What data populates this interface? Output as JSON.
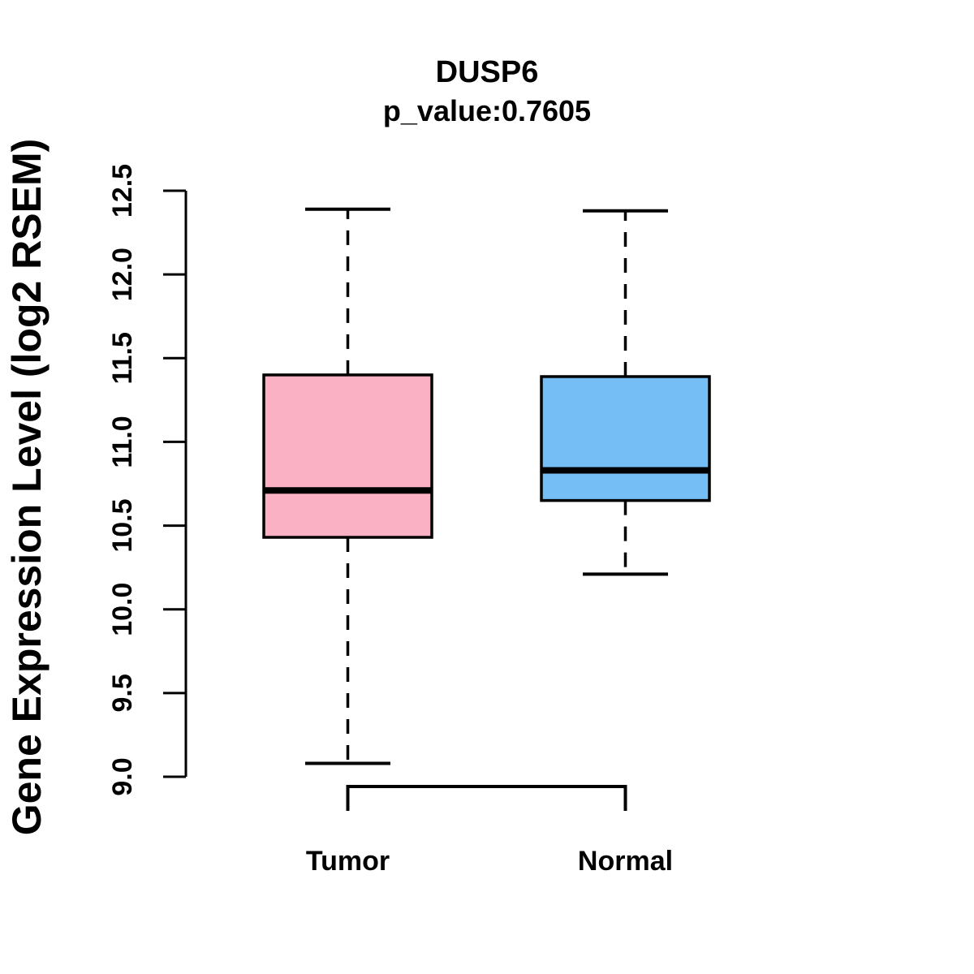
{
  "title": "DUSP6",
  "subtitle": "p_value:0.7605",
  "chart_data": {
    "type": "boxplot",
    "title": "DUSP6",
    "subtitle": "p_value:0.7605",
    "ylabel": "Gene Expression Level (log2 RSEM)",
    "ylim": [
      9.0,
      12.5
    ],
    "ytick_labels": [
      "9.0",
      "9.5",
      "10.0",
      "10.5",
      "11.0",
      "11.5",
      "12.0",
      "12.5"
    ],
    "categories": [
      "Tumor",
      "Normal"
    ],
    "series": [
      {
        "name": "Tumor",
        "fill_color": "#FBB1C4",
        "lower_whisker": 9.08,
        "q1": 10.43,
        "median": 10.71,
        "q3": 11.4,
        "upper_whisker": 12.39
      },
      {
        "name": "Normal",
        "fill_color": "#75BEF5",
        "lower_whisker": 10.21,
        "q1": 10.65,
        "median": 10.83,
        "q3": 11.39,
        "upper_whisker": 12.38
      }
    ],
    "comparison_bracket": {
      "between": [
        "Tumor",
        "Normal"
      ]
    },
    "grid": false,
    "legend": false,
    "line_color": "#000000",
    "background_color": "#FFFFFF",
    "whisker_style": "dashed"
  }
}
